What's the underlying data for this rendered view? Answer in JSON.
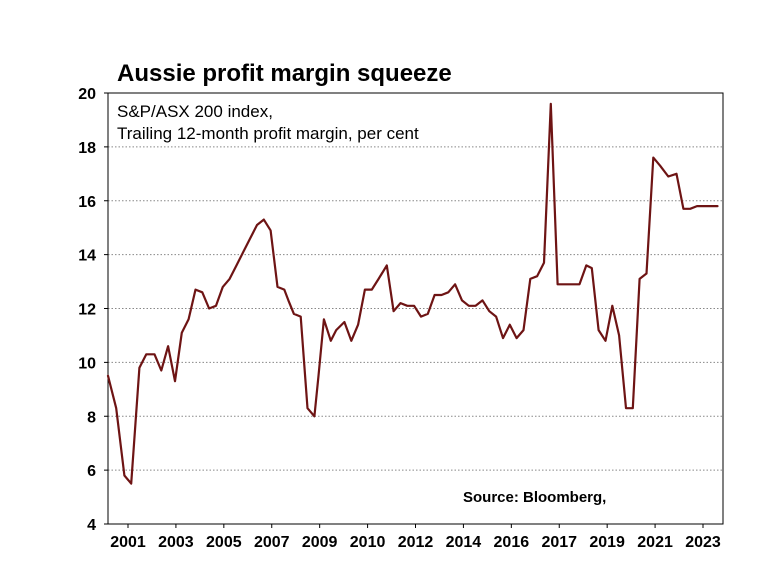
{
  "chart_data": {
    "type": "line",
    "title": "Aussie profit margin squeeze",
    "annotation_lines": [
      "S&P/ASX 200 index,",
      "Trailing 12-month profit margin, per cent"
    ],
    "source": "Source: Bloomberg,",
    "xlabel": "",
    "ylabel": "",
    "xlim": [
      2001,
      2023.5
    ],
    "ylim": [
      4,
      20
    ],
    "yticks": [
      4,
      6,
      8,
      10,
      12,
      14,
      16,
      18,
      20
    ],
    "xticks": [
      "2001",
      "2003",
      "2005",
      "2007",
      "2009",
      "2010",
      "2012",
      "2014",
      "2016",
      "2017",
      "2019",
      "2021",
      "2023"
    ],
    "grid": "horizontal-dotted",
    "line_color": "#6e1414",
    "series": [
      {
        "x": [
          2001.0,
          2001.3,
          2001.6,
          2001.85,
          2002.15,
          2002.4,
          2002.7,
          2002.95,
          2003.2,
          2003.45,
          2003.7,
          2003.95,
          2004.2,
          2004.45,
          2004.7,
          2004.95,
          2005.2,
          2005.45,
          2005.7,
          2005.95,
          2006.2,
          2006.45,
          2006.7,
          2006.95,
          2007.2,
          2007.45,
          2007.6,
          2007.8,
          2008.05,
          2008.3,
          2008.55,
          2008.7,
          2008.9,
          2009.15,
          2009.35,
          2009.65,
          2009.9,
          2010.15,
          2010.4,
          2010.65,
          2010.9,
          2011.2,
          2011.45,
          2011.7,
          2011.95,
          2012.2,
          2012.45,
          2012.7,
          2012.95,
          2013.2,
          2013.45,
          2013.7,
          2013.95,
          2014.2,
          2014.45,
          2014.7,
          2014.95,
          2015.2,
          2015.45,
          2015.7,
          2015.95,
          2016.2,
          2016.45,
          2016.7,
          2016.95,
          2017.2,
          2017.45,
          2017.75,
          2018.0,
          2018.25,
          2018.5,
          2018.7,
          2018.95,
          2019.2,
          2019.45,
          2019.7,
          2019.95,
          2020.2,
          2020.45,
          2020.7,
          2020.95,
          2021.2,
          2021.5,
          2021.8,
          2022.05,
          2022.3,
          2022.55,
          2022.8,
          2023.05,
          2023.3
        ],
        "values": [
          9.5,
          8.3,
          5.8,
          5.5,
          9.8,
          10.3,
          10.3,
          9.7,
          10.6,
          9.3,
          11.1,
          11.6,
          12.7,
          12.6,
          12.0,
          12.1,
          12.8,
          13.1,
          13.6,
          14.1,
          14.6,
          15.1,
          15.3,
          14.9,
          12.8,
          12.7,
          12.3,
          11.8,
          11.7,
          8.3,
          8.0,
          9.5,
          11.6,
          10.8,
          11.2,
          11.5,
          10.8,
          11.4,
          12.7,
          12.7,
          13.1,
          13.6,
          11.9,
          12.2,
          12.1,
          12.1,
          11.7,
          11.8,
          12.5,
          12.5,
          12.6,
          12.9,
          12.3,
          12.1,
          12.1,
          12.3,
          11.9,
          11.7,
          10.9,
          11.4,
          10.9,
          11.2,
          13.1,
          13.2,
          13.7,
          19.6,
          12.9,
          12.9,
          12.9,
          12.9,
          13.6,
          13.5,
          11.2,
          10.8,
          12.1,
          11.0,
          8.3,
          8.3,
          13.1,
          13.3,
          17.6,
          17.3,
          16.9,
          17.0,
          15.7,
          15.7,
          15.8,
          15.8,
          15.8,
          15.8
        ]
      }
    ]
  }
}
